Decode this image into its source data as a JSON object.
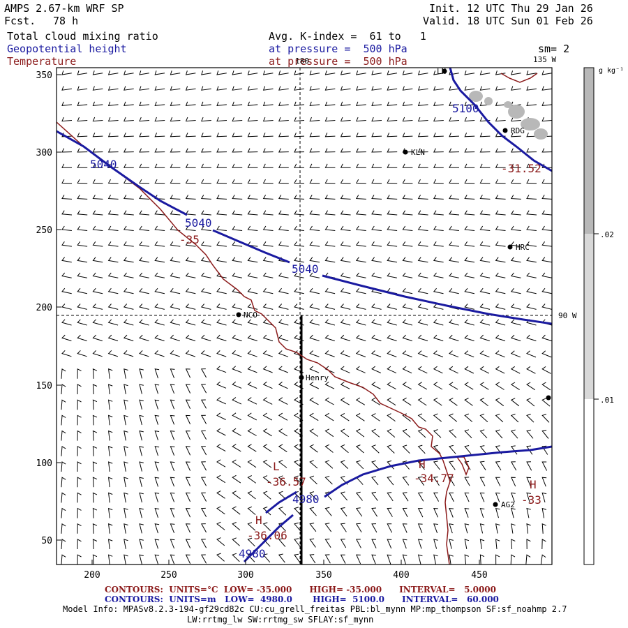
{
  "header": {
    "model": "AMPS 2.67-km WRF SP",
    "fcst_label": "Fcst.",
    "fcst_value": "78 h",
    "init": "Init. 12 UTC Thu 29 Jan 26",
    "valid": "Valid. 18 UTC Sun 01 Feb 26",
    "field1": "Total cloud mixing ratio",
    "field2": "Geopotential height",
    "field3": "Temperature",
    "avg": "Avg. K-index =  61 to   1",
    "pressure2": "at pressure =  500 hPa",
    "pressure3": "at pressure =  500 hPa",
    "sm": "sm= 2"
  },
  "axes": {
    "x_ticks": [
      "200",
      "250",
      "300",
      "350",
      "400",
      "450"
    ],
    "y_ticks": [
      "350",
      "300",
      "250",
      "200",
      "150",
      "100",
      "50"
    ],
    "lon_180": "180",
    "lon_135w": "135 W",
    "lon_90w": "90 W"
  },
  "colorbar": {
    "unit": "g kg⁻¹",
    "labels": [
      ".02",
      ".01"
    ]
  },
  "stations": [
    {
      "name": "KLN"
    },
    {
      "name": "RDG"
    },
    {
      "name": "HRC"
    },
    {
      "name": "NCO"
    },
    {
      "name": "Henry"
    },
    {
      "name": "AG2"
    },
    {
      "name": "LN"
    }
  ],
  "contour_labels": {
    "h5100": "5100",
    "h5040a": "5040",
    "h5040b": "5040",
    "h5040c": "5040",
    "h4980a": "4980",
    "h4980b": "4980",
    "t_35": "-35",
    "t_3152": "-31.52",
    "L": "L",
    "t_3657": "-36.57",
    "H1": "H",
    "t_3477": "-34.77",
    "H2": "H",
    "t_33": "-33",
    "H3": "H",
    "t_3606": "-36.06"
  },
  "footer": {
    "red_contours": "CONTOURS:  UNITS=°C  LOW= -35.000      HIGH= -35.000      INTERVAL=   5.0000",
    "blue_contours": "CONTOURS:  UNITS=m   LOW=  4980.0       HIGH=  5100.0      INTERVAL=   60.000",
    "model_info": "Model Info: MPASv8.2.3-194-gf29cd82c CU:cu_grell_freitas PBL:bl_mynn MP:mp_thompson SF:sf_noahmp 2.7",
    "model_info2": "LW:rrtmg_lw SW:rrtmg_sw SFLAY:sf_mynn"
  },
  "colors": {
    "height": "#1a1aa0",
    "temperature": "#8b1a1a",
    "cloud": "#b8b8b8"
  }
}
